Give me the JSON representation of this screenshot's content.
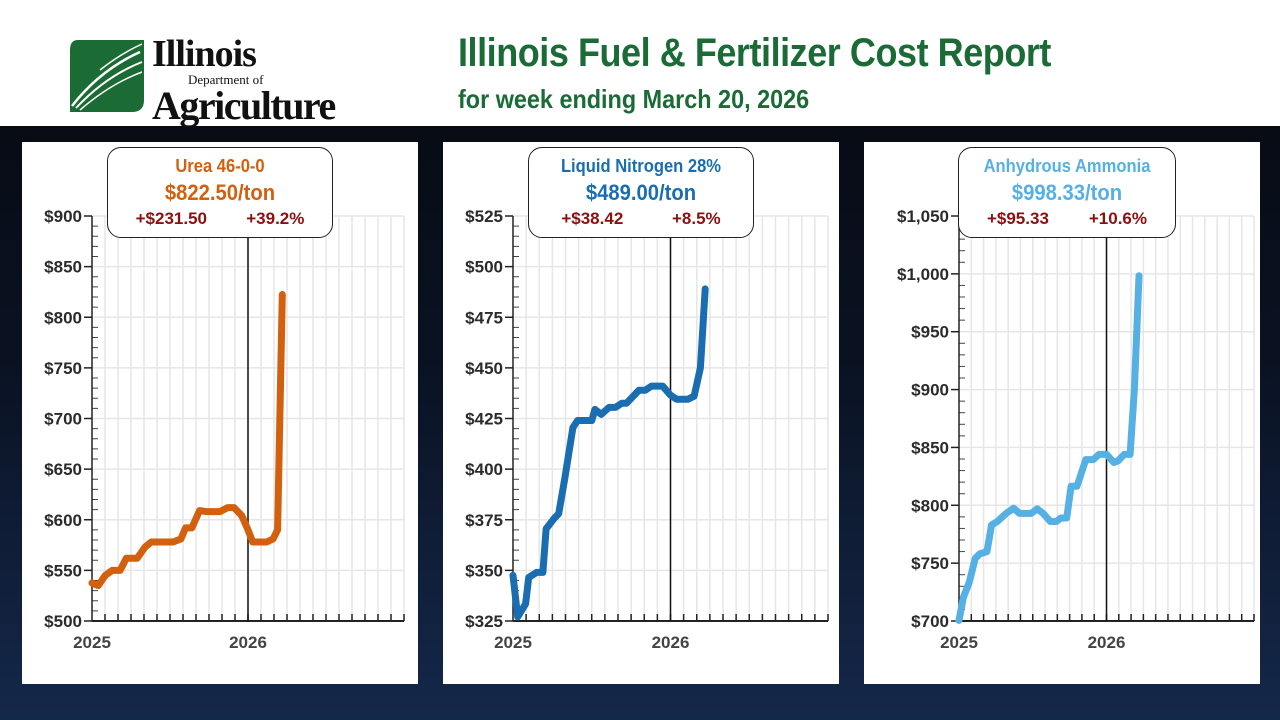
{
  "header": {
    "logo": {
      "line1": "Illinois",
      "line2": "Department of",
      "line3": "Agriculture"
    },
    "title": "Illinois Fuel & Fertilizer Cost Report",
    "subtitle": "for week ending March 20, 2026"
  },
  "colors": {
    "title": "#1a6b35",
    "change": "#8b1010",
    "marker_line": "#111111",
    "grid": "#e6e6e6"
  },
  "chart_data": [
    {
      "type": "line",
      "callout": {
        "name": "Urea 46-0-0",
        "price": "$822.50/ton",
        "change_abs": "+$231.50",
        "change_pct": "+39.2%"
      },
      "color": "#d2600e",
      "ylim": [
        500,
        900
      ],
      "xlim": [
        2025,
        2027
      ],
      "yticks": [
        "$500",
        "$550",
        "$600",
        "$650",
        "$700",
        "$750",
        "$800",
        "$850",
        "$900"
      ],
      "ytick_values": [
        500,
        550,
        600,
        650,
        700,
        750,
        800,
        850,
        900
      ],
      "xticks": [
        "2025",
        "2026"
      ],
      "xtick_values": [
        2025,
        2026
      ],
      "marker_x": 2026,
      "grid": true,
      "points": [
        [
          2025.0,
          537.5
        ],
        [
          2025.04,
          535
        ],
        [
          2025.085,
          545
        ],
        [
          2025.13,
          550
        ],
        [
          2025.18,
          550
        ],
        [
          2025.22,
          562
        ],
        [
          2025.29,
          562
        ],
        [
          2025.34,
          573
        ],
        [
          2025.38,
          578
        ],
        [
          2025.52,
          578
        ],
        [
          2025.57,
          581
        ],
        [
          2025.6,
          592
        ],
        [
          2025.64,
          592
        ],
        [
          2025.69,
          609
        ],
        [
          2025.73,
          608
        ],
        [
          2025.82,
          608
        ],
        [
          2025.87,
          612
        ],
        [
          2025.91,
          612
        ],
        [
          2025.96,
          604
        ],
        [
          2026.0,
          590
        ],
        [
          2026.03,
          578
        ],
        [
          2026.12,
          578
        ],
        [
          2026.16,
          581
        ],
        [
          2026.19,
          590
        ],
        [
          2026.22,
          822.5
        ]
      ]
    },
    {
      "type": "line",
      "callout": {
        "name": "Liquid Nitrogen 28%",
        "price": "$489.00/ton",
        "change_abs": "+$38.42",
        "change_pct": "+8.5%"
      },
      "color": "#1a6db0",
      "ylim": [
        325,
        525
      ],
      "xlim": [
        2025,
        2027
      ],
      "yticks": [
        "$325",
        "$350",
        "$375",
        "$400",
        "$425",
        "$450",
        "$475",
        "$500",
        "$525"
      ],
      "ytick_values": [
        325,
        350,
        375,
        400,
        425,
        450,
        475,
        500,
        525
      ],
      "xticks": [
        "2025",
        "2026"
      ],
      "xtick_values": [
        2025,
        2026
      ],
      "marker_x": 2026,
      "grid": true,
      "points": [
        [
          2025.0,
          347.5
        ],
        [
          2025.03,
          327
        ],
        [
          2025.08,
          333.5
        ],
        [
          2025.1,
          346.5
        ],
        [
          2025.15,
          349
        ],
        [
          2025.19,
          349
        ],
        [
          2025.21,
          370.5
        ],
        [
          2025.26,
          375.5
        ],
        [
          2025.29,
          378
        ],
        [
          2025.33,
          396
        ],
        [
          2025.38,
          420.5
        ],
        [
          2025.41,
          424
        ],
        [
          2025.5,
          424
        ],
        [
          2025.52,
          429.5
        ],
        [
          2025.56,
          427
        ],
        [
          2025.61,
          430.5
        ],
        [
          2025.65,
          430.5
        ],
        [
          2025.69,
          432.5
        ],
        [
          2025.72,
          432.5
        ],
        [
          2025.8,
          439
        ],
        [
          2025.84,
          439
        ],
        [
          2025.88,
          441
        ],
        [
          2025.95,
          441
        ],
        [
          2026.0,
          436.5
        ],
        [
          2026.04,
          434.5
        ],
        [
          2026.11,
          434.5
        ],
        [
          2026.15,
          436
        ],
        [
          2026.19,
          450
        ],
        [
          2026.22,
          489
        ]
      ]
    },
    {
      "type": "line",
      "callout": {
        "name": "Anhydrous Ammonia",
        "price": "$998.33/ton",
        "change_abs": "+$95.33",
        "change_pct": "+10.6%"
      },
      "color": "#55b0e4",
      "ylim": [
        700,
        1050
      ],
      "xlim": [
        2025,
        2027
      ],
      "yticks": [
        "$700",
        "$750",
        "$800",
        "$850",
        "$900",
        "$950",
        "$1,000",
        "$1,050"
      ],
      "ytick_values": [
        700,
        750,
        800,
        850,
        900,
        950,
        1000,
        1050
      ],
      "xticks": [
        "2025",
        "2026"
      ],
      "xtick_values": [
        2025,
        2026
      ],
      "marker_x": 2026,
      "grid": true,
      "points": [
        [
          2025.0,
          700.5
        ],
        [
          2025.03,
          720.5
        ],
        [
          2025.07,
          733.5
        ],
        [
          2025.11,
          754
        ],
        [
          2025.14,
          758
        ],
        [
          2025.19,
          760
        ],
        [
          2025.22,
          783
        ],
        [
          2025.26,
          786
        ],
        [
          2025.32,
          793
        ],
        [
          2025.37,
          797.5
        ],
        [
          2025.41,
          793
        ],
        [
          2025.49,
          793
        ],
        [
          2025.53,
          797
        ],
        [
          2025.57,
          793
        ],
        [
          2025.62,
          786
        ],
        [
          2025.66,
          786
        ],
        [
          2025.69,
          789
        ],
        [
          2025.73,
          789
        ],
        [
          2025.76,
          816.5
        ],
        [
          2025.8,
          816.5
        ],
        [
          2025.86,
          839.5
        ],
        [
          2025.91,
          839.5
        ],
        [
          2025.95,
          844
        ],
        [
          2026.0,
          844
        ],
        [
          2026.05,
          837
        ],
        [
          2026.08,
          838.5
        ],
        [
          2026.12,
          844
        ],
        [
          2026.16,
          844
        ],
        [
          2026.19,
          902
        ],
        [
          2026.22,
          998.33
        ]
      ]
    }
  ]
}
